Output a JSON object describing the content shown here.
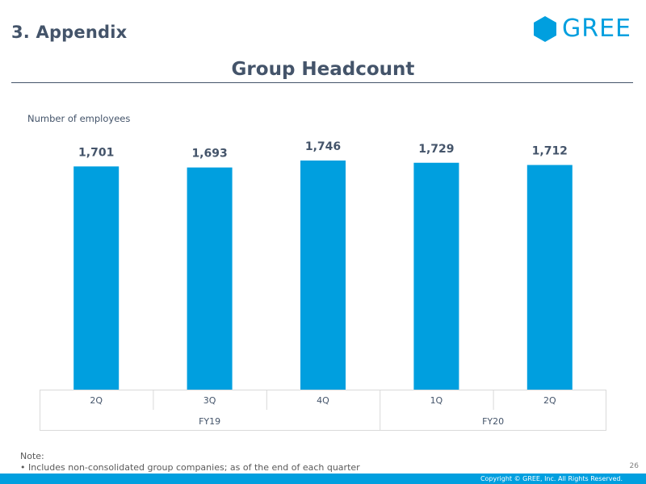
{
  "header": {
    "section_title": "3. Appendix",
    "logo_text": "GREE",
    "page_heading": "Group Headcount"
  },
  "colors": {
    "bar": "#009fdf",
    "text": "#44546a",
    "grid_line": "#d9d9d9",
    "footer_bar": "#009fdf"
  },
  "chart_data": {
    "type": "bar",
    "title": "Group Headcount",
    "ylabel": "Number of employees",
    "xlabel": "",
    "categories": [
      "2Q",
      "3Q",
      "4Q",
      "1Q",
      "2Q"
    ],
    "category_groups": [
      {
        "label": "FY19",
        "span": 3
      },
      {
        "label": "FY20",
        "span": 2
      }
    ],
    "values": [
      1701,
      1693,
      1746,
      1729,
      1712
    ],
    "data_labels": [
      "1,701",
      "1,693",
      "1,746",
      "1,729",
      "1,712"
    ],
    "ylim": [
      0,
      1746
    ],
    "grid": false,
    "legend": "none"
  },
  "footer": {
    "note_label": "Note:",
    "note_text": "• Includes non-consolidated group companies; as of the end of each quarter",
    "page_number": "26",
    "copyright": "Copyright © GREE, Inc. All Rights Reserved."
  }
}
